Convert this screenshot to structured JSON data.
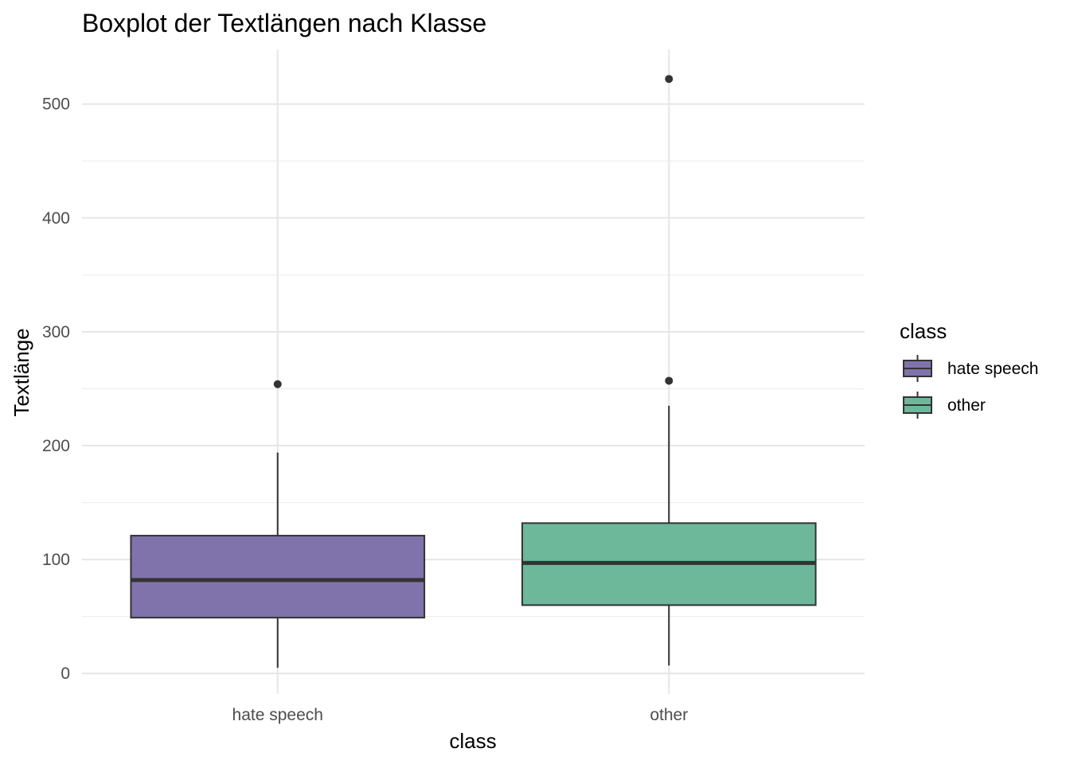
{
  "chart_data": {
    "type": "boxplot",
    "title": "Boxplot der Textlängen nach Klasse",
    "xlabel": "class",
    "ylabel": "Textlänge",
    "ylim": [
      -18,
      548
    ],
    "y_ticks": [
      0,
      100,
      200,
      300,
      400,
      500
    ],
    "y_tick_labels": [
      "0",
      "100",
      "200",
      "300",
      "400",
      "500"
    ],
    "grid": true,
    "legend": {
      "title": "class",
      "position": "right"
    },
    "categories": [
      "hate speech",
      "other"
    ],
    "series": [
      {
        "name": "hate speech",
        "color": "#8073ac",
        "min": 5,
        "q1": 49,
        "median": 82,
        "q3": 121,
        "max": 194,
        "outliers": [
          254
        ]
      },
      {
        "name": "other",
        "color": "#6db89a",
        "min": 7,
        "q1": 60,
        "median": 97,
        "q3": 132,
        "max": 235,
        "outliers": [
          257,
          522
        ]
      }
    ]
  }
}
